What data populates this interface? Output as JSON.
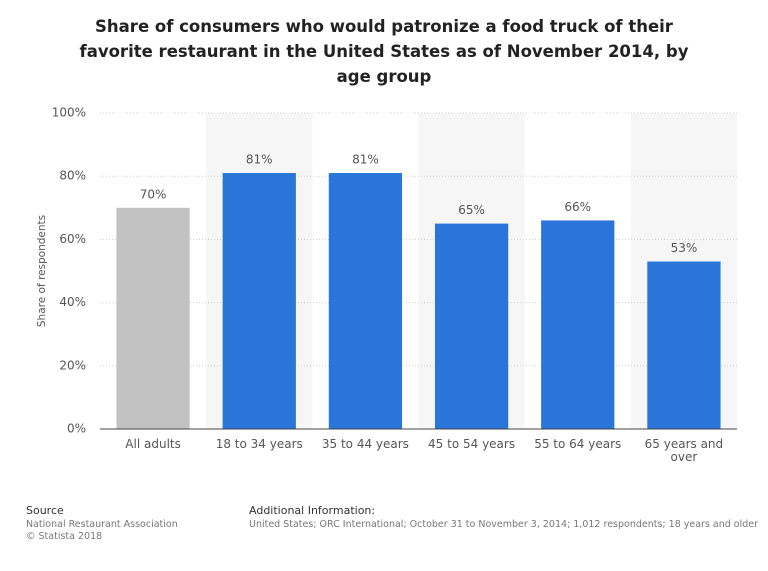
{
  "chart_data": {
    "type": "bar",
    "title": "Share of consumers who would patronize a food truck of their favorite restaurant in the United States as of November 2014, by age group",
    "y_label": "Share of respondents",
    "categories": [
      "All adults",
      "18 to 34 years",
      "35 to 44 years",
      "45 to 54 years",
      "55 to 64 years",
      "65 years and over"
    ],
    "values": [
      70,
      81,
      81,
      65,
      66,
      53
    ],
    "value_labels": [
      "70%",
      "81%",
      "81%",
      "65%",
      "66%",
      "53%"
    ],
    "colors": [
      "#c2c2c2",
      "#2a75d9",
      "#2a75d9",
      "#2a75d9",
      "#2a75d9",
      "#2a75d9"
    ],
    "ylim": [
      0,
      100
    ],
    "yticks": [
      {
        "value": 0,
        "label": "0%"
      },
      {
        "value": 20,
        "label": "20%"
      },
      {
        "value": 40,
        "label": "40%"
      },
      {
        "value": 60,
        "label": "60%"
      },
      {
        "value": 80,
        "label": "80%"
      },
      {
        "value": 100,
        "label": "100%"
      }
    ],
    "grid": true
  },
  "footer": {
    "source_heading": "Source",
    "source": "National Restaurant Association",
    "copyright": "© Statista 2018",
    "info_heading": "Additional Information:",
    "info": "United States; ORC International; October 31 to November 3, 2014; 1,012 respondents; 18 years and older"
  }
}
